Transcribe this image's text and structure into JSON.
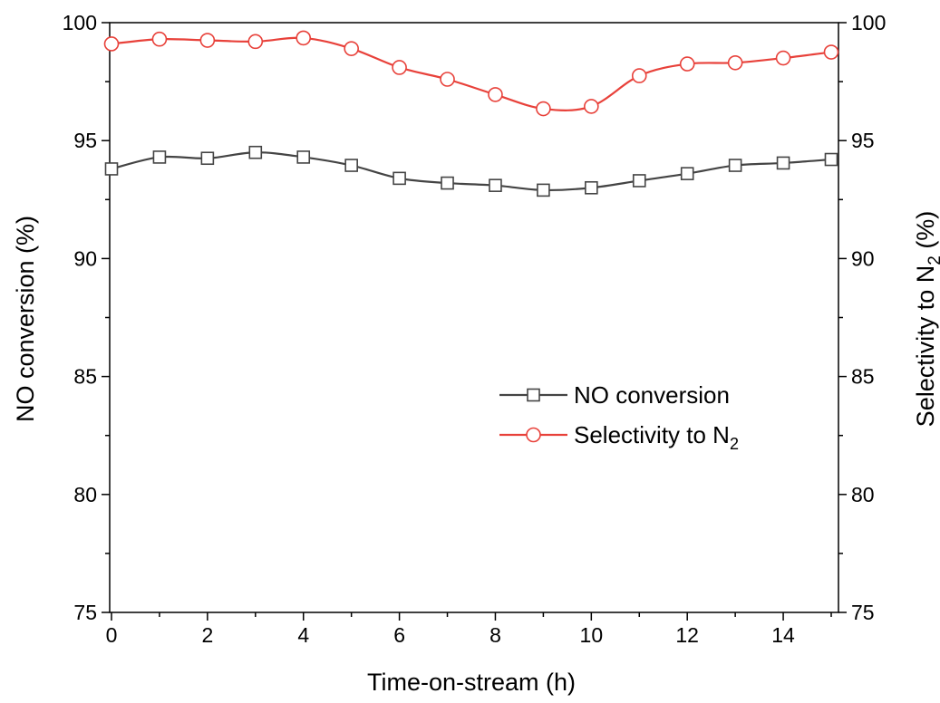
{
  "chart_data": {
    "type": "line",
    "x": [
      0,
      1,
      2,
      3,
      4,
      5,
      6,
      7,
      8,
      9,
      10,
      11,
      12,
      13,
      14,
      15
    ],
    "xlabel": "Time-on-stream (h)",
    "ylabel": "NO conversion (%)",
    "ylabel_right_parts": [
      "Selectivity to N",
      "2",
      " (%)"
    ],
    "xlim": [
      0,
      15
    ],
    "ylim": [
      75,
      100
    ],
    "ylim_right": [
      75,
      100
    ],
    "x_ticks": [
      0,
      2,
      4,
      6,
      8,
      10,
      12,
      14
    ],
    "x_tick_labels": [
      "0",
      "2",
      "4",
      "6",
      "8",
      "10",
      "12",
      "14"
    ],
    "y_ticks": [
      75,
      80,
      85,
      90,
      95,
      100
    ],
    "y_tick_labels": [
      "75",
      "80",
      "85",
      "90",
      "95",
      "100"
    ],
    "y_ticks_right": [
      75,
      80,
      85,
      90,
      95,
      100
    ],
    "y_tick_labels_right": [
      "75",
      "80",
      "85",
      "90",
      "95",
      "100"
    ],
    "grid": false,
    "legend_position": "center-right",
    "series": [
      {
        "name": "NO conversion",
        "axis": "left",
        "marker": "square",
        "color": "#444444",
        "values": [
          93.8,
          94.3,
          94.25,
          94.5,
          94.3,
          93.95,
          93.4,
          93.2,
          93.1,
          92.9,
          93.0,
          93.3,
          93.6,
          93.95,
          94.05,
          94.2
        ]
      },
      {
        "name": "Selectivity to N2",
        "name_parts": [
          "Selectivity to N",
          "2"
        ],
        "axis": "right",
        "marker": "circle",
        "color": "#e8413a",
        "values": [
          99.1,
          99.3,
          99.25,
          99.2,
          99.35,
          98.9,
          98.1,
          97.6,
          96.95,
          96.35,
          96.45,
          97.75,
          98.25,
          98.3,
          98.5,
          98.75
        ]
      }
    ]
  }
}
